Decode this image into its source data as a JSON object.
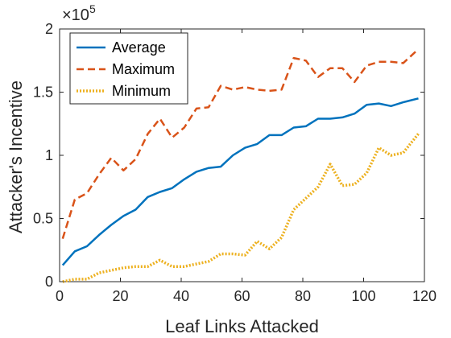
{
  "chart_data": {
    "type": "line",
    "xlabel": "Leaf Links Attacked",
    "ylabel": "Attacker's Incentive",
    "y_multiplier_label": "×10",
    "y_multiplier_exponent": "5",
    "xlim": [
      0,
      120
    ],
    "ylim": [
      0,
      2
    ],
    "xticks": [
      0,
      20,
      40,
      60,
      80,
      100,
      120
    ],
    "yticks": [
      0,
      0.5,
      1,
      1.5,
      2
    ],
    "ytick_labels": [
      "0",
      "0.5",
      "1",
      "1.5",
      "2"
    ],
    "grid": false,
    "legend_position": "top-left",
    "series": [
      {
        "name": "Average",
        "color": "#0072BD",
        "style": "solid",
        "x": [
          1,
          5,
          9,
          13,
          17,
          21,
          25,
          29,
          33,
          37,
          41,
          45,
          49,
          53,
          57,
          61,
          65,
          69,
          73,
          77,
          81,
          85,
          89,
          93,
          97,
          101,
          105,
          109,
          113,
          118
        ],
        "y": [
          0.13,
          0.24,
          0.28,
          0.37,
          0.45,
          0.52,
          0.57,
          0.67,
          0.71,
          0.74,
          0.81,
          0.87,
          0.9,
          0.91,
          1.0,
          1.06,
          1.09,
          1.16,
          1.16,
          1.22,
          1.23,
          1.29,
          1.29,
          1.3,
          1.33,
          1.4,
          1.41,
          1.39,
          1.42,
          1.45
        ]
      },
      {
        "name": "Maximum",
        "color": "#D95319",
        "style": "dashed",
        "x": [
          1,
          5,
          9,
          13,
          17,
          21,
          25,
          29,
          33,
          37,
          41,
          45,
          49,
          53,
          57,
          61,
          65,
          69,
          73,
          77,
          81,
          85,
          89,
          93,
          97,
          101,
          105,
          109,
          113,
          118
        ],
        "y": [
          0.34,
          0.65,
          0.7,
          0.85,
          0.98,
          0.88,
          0.97,
          1.17,
          1.29,
          1.14,
          1.22,
          1.37,
          1.38,
          1.55,
          1.52,
          1.54,
          1.52,
          1.51,
          1.52,
          1.77,
          1.75,
          1.62,
          1.69,
          1.69,
          1.58,
          1.71,
          1.74,
          1.74,
          1.73,
          1.84
        ]
      },
      {
        "name": "Minimum",
        "color": "#EDB120",
        "style": "dotted",
        "x": [
          1,
          5,
          9,
          13,
          17,
          21,
          25,
          29,
          33,
          37,
          41,
          45,
          49,
          53,
          57,
          61,
          65,
          69,
          73,
          77,
          81,
          85,
          89,
          93,
          97,
          101,
          105,
          109,
          113,
          118
        ],
        "y": [
          0.0,
          0.02,
          0.02,
          0.07,
          0.09,
          0.11,
          0.12,
          0.12,
          0.17,
          0.12,
          0.12,
          0.14,
          0.16,
          0.22,
          0.22,
          0.21,
          0.32,
          0.26,
          0.35,
          0.57,
          0.66,
          0.75,
          0.93,
          0.76,
          0.77,
          0.86,
          1.06,
          1.0,
          1.02,
          1.17
        ]
      }
    ]
  }
}
